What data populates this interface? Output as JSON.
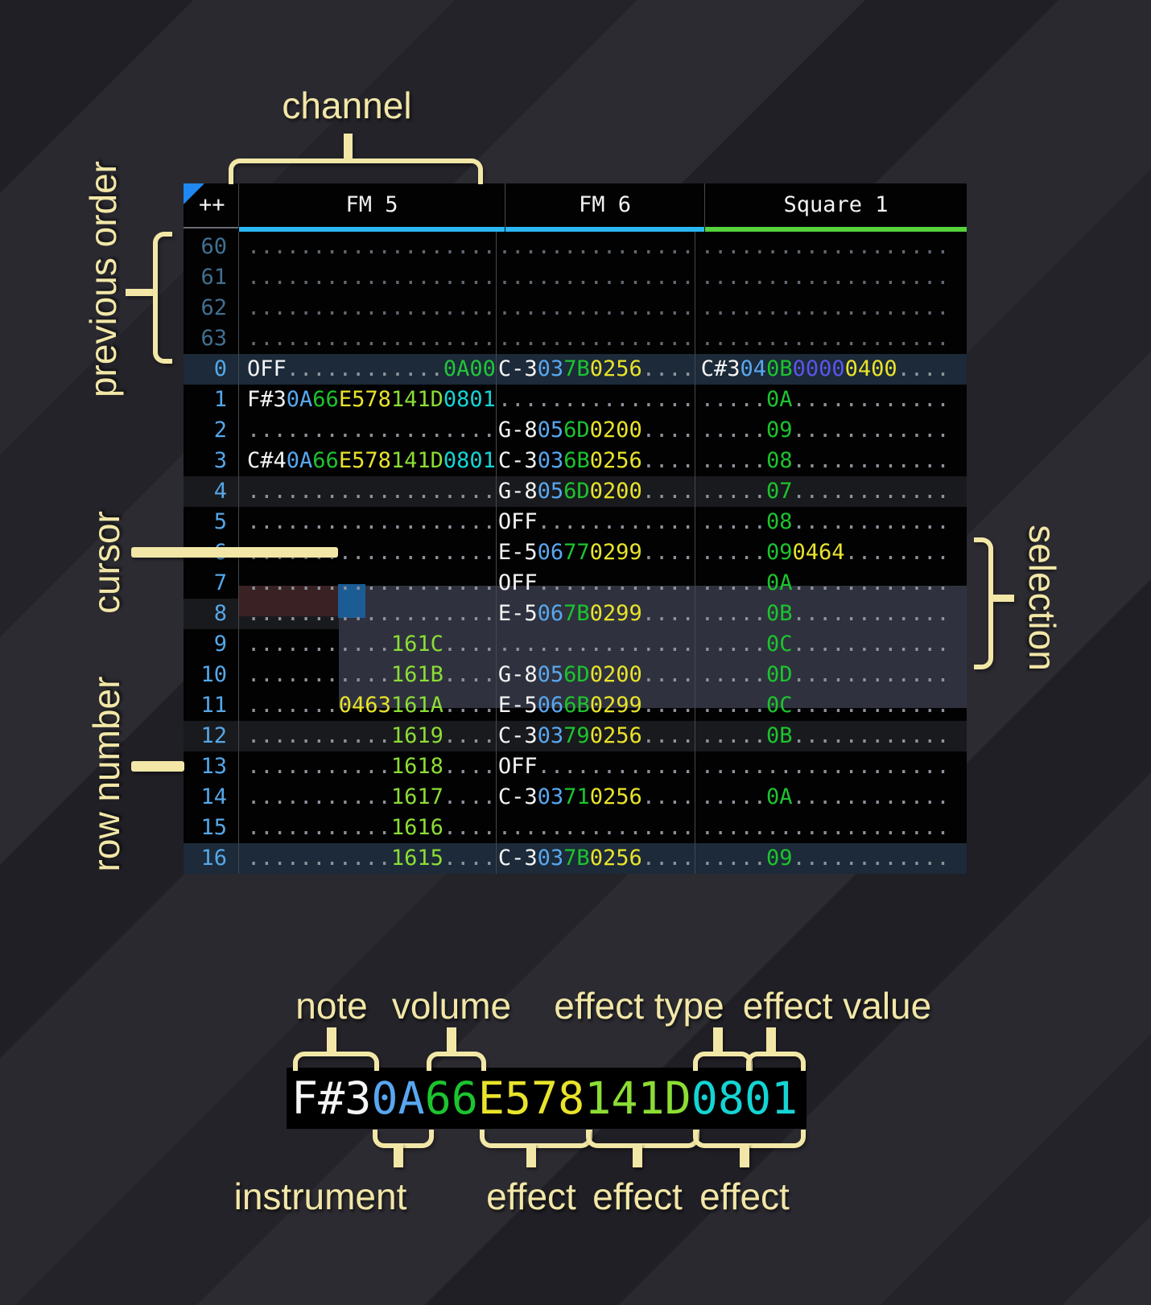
{
  "annotations": {
    "channel": "channel",
    "previous_order": "previous order",
    "cursor": "cursor",
    "row_number": "row number",
    "selection": "selection",
    "note": "note",
    "volume": "volume",
    "effect_type": "effect type",
    "effect_value": "effect value",
    "instrument": "instrument",
    "effect": "effect"
  },
  "tracker": {
    "corner_label": "++",
    "channels": [
      {
        "name": "FM 5",
        "underline": "fm"
      },
      {
        "name": "FM 6",
        "underline": "fm"
      },
      {
        "name": "Square 1",
        "underline": "sq"
      }
    ],
    "rows": [
      {
        "num": "60",
        "cls": "dim",
        "fm5": [
          "d:..................."
        ],
        "fm6": [
          "d:..............."
        ],
        "sq": [
          "d:..................."
        ]
      },
      {
        "num": "61",
        "cls": "dim",
        "fm5": [
          "d:..................."
        ],
        "fm6": [
          "d:..............."
        ],
        "sq": [
          "d:..................."
        ]
      },
      {
        "num": "62",
        "cls": "dim",
        "fm5": [
          "d:..................."
        ],
        "fm6": [
          "d:..............."
        ],
        "sq": [
          "d:..................."
        ]
      },
      {
        "num": "63",
        "cls": "dim",
        "fm5": [
          "d:..................."
        ],
        "fm6": [
          "d:..............."
        ],
        "sq": [
          "d:..................."
        ]
      },
      {
        "num": "0",
        "cls": "hl16",
        "fm5": [
          "W:OFF",
          "D:............",
          "G:0A00"
        ],
        "fm6": [
          "W:C-3",
          "I:03",
          "V:7B",
          "Y:0256",
          "D:...."
        ],
        "sq": [
          "W:C#3",
          "I:04",
          "V:0B",
          "P:0000",
          "Y:0400",
          "D:...."
        ]
      },
      {
        "num": "1",
        "cls": "",
        "fm5": [
          "W:F#3",
          "I:0A",
          "V:66",
          "Y:E578",
          "L:141D",
          "C:0801"
        ],
        "fm6": [
          "D:..............."
        ],
        "sq": [
          "D:.....",
          "V:0A",
          "D:............"
        ]
      },
      {
        "num": "2",
        "cls": "",
        "fm5": [
          "D:..................."
        ],
        "fm6": [
          "W:G-8",
          "I:05",
          "V:6D",
          "Y:0200",
          "D:...."
        ],
        "sq": [
          "D:.....",
          "V:09",
          "D:............"
        ]
      },
      {
        "num": "3",
        "cls": "",
        "fm5": [
          "W:C#4",
          "I:0A",
          "V:66",
          "Y:E578",
          "L:141D",
          "C:0801"
        ],
        "fm6": [
          "W:C-3",
          "I:03",
          "V:6B",
          "Y:0256",
          "D:...."
        ],
        "sq": [
          "D:.....",
          "V:08",
          "D:............"
        ]
      },
      {
        "num": "4",
        "cls": "hl4",
        "fm5": [
          "D:..................."
        ],
        "fm6": [
          "W:G-8",
          "I:05",
          "V:6D",
          "Y:0200",
          "D:...."
        ],
        "sq": [
          "D:.....",
          "V:07",
          "D:............"
        ]
      },
      {
        "num": "5",
        "cls": "",
        "fm5": [
          "D:..................."
        ],
        "fm6": [
          "W:OFF",
          "D:............"
        ],
        "sq": [
          "D:.....",
          "V:08",
          "D:............"
        ]
      },
      {
        "num": "6",
        "cls": "",
        "fm5": [
          "D:..................."
        ],
        "fm6": [
          "W:E-5",
          "I:06",
          "V:77",
          "Y:0299",
          "D:...."
        ],
        "sq": [
          "D:.....",
          "V:09",
          "Y:0464",
          "D:........"
        ]
      },
      {
        "num": "7",
        "cls": "",
        "fm5": [
          "D:..................."
        ],
        "fm6": [
          "W:OFF",
          "D:............"
        ],
        "sq": [
          "D:.....",
          "V:0A",
          "D:............"
        ]
      },
      {
        "num": "8",
        "cls": "hl4",
        "fm5": [
          "D:..................."
        ],
        "fm6": [
          "W:E-5",
          "I:06",
          "V:7B",
          "Y:0299",
          "D:...."
        ],
        "sq": [
          "D:.....",
          "V:0B",
          "D:............"
        ]
      },
      {
        "num": "9",
        "cls": "",
        "fm5": [
          "D:...........",
          "L:161C",
          "D:...."
        ],
        "fm6": [
          "D:..............."
        ],
        "sq": [
          "D:.....",
          "V:0C",
          "D:............"
        ]
      },
      {
        "num": "10",
        "cls": "",
        "fm5": [
          "D:...........",
          "L:161B",
          "D:...."
        ],
        "fm6": [
          "W:G-8",
          "I:05",
          "V:6D",
          "Y:0200",
          "D:...."
        ],
        "sq": [
          "D:.....",
          "V:0D",
          "D:............"
        ]
      },
      {
        "num": "11",
        "cls": "",
        "fm5": [
          "D:.......",
          "Y:0463",
          "L:161A",
          "D:...."
        ],
        "fm6": [
          "W:E-5",
          "I:06",
          "V:6B",
          "Y:0299",
          "D:...."
        ],
        "sq": [
          "D:.....",
          "V:0C",
          "D:............"
        ]
      },
      {
        "num": "12",
        "cls": "hl4",
        "fm5": [
          "D:...........",
          "L:1619",
          "D:...."
        ],
        "fm6": [
          "W:C-3",
          "I:03",
          "V:79",
          "Y:0256",
          "D:...."
        ],
        "sq": [
          "D:.....",
          "V:0B",
          "D:............"
        ]
      },
      {
        "num": "13",
        "cls": "",
        "fm5": [
          "D:...........",
          "L:1618",
          "D:...."
        ],
        "fm6": [
          "W:OFF",
          "D:............"
        ],
        "sq": [
          "D:..................."
        ]
      },
      {
        "num": "14",
        "cls": "",
        "fm5": [
          "D:...........",
          "L:1617",
          "D:...."
        ],
        "fm6": [
          "W:C-3",
          "I:03",
          "V:71",
          "Y:0256",
          "D:...."
        ],
        "sq": [
          "D:.....",
          "V:0A",
          "D:............"
        ]
      },
      {
        "num": "15",
        "cls": "",
        "fm5": [
          "D:...........",
          "L:1616",
          "D:...."
        ],
        "fm6": [
          "D:..............."
        ],
        "sq": [
          "D:..................."
        ]
      },
      {
        "num": "16",
        "cls": "hl16",
        "fm5": [
          "D:...........",
          "L:1615",
          "D:...."
        ],
        "fm6": [
          "W:C-3",
          "I:03",
          "V:7B",
          "Y:0256",
          "D:...."
        ],
        "sq": [
          "D:.....",
          "V:09",
          "D:............"
        ]
      }
    ]
  },
  "breakdown": {
    "segments": [
      "W:F#3",
      "I:0A",
      "V:66",
      "Y:E578",
      "L:141D",
      "C:0801"
    ]
  },
  "colors": {
    "text": {
      "W": "#f5f5f5",
      "I": "#58a7f0",
      "V": "#1cc42e",
      "Y": "#e9e32b",
      "L": "#8cdd35",
      "C": "#15d4d4",
      "P": "#5b55e9",
      "G": "#22c53a",
      "D": "#8e939b",
      "d": "#636971"
    },
    "ui": {
      "annotation": "#f2e7a7",
      "row_number": "#55a7e8",
      "row_number_dim": "#41708f",
      "header_text": "#f2f2f2",
      "underline_fm": "#2bb7f4",
      "underline_square": "#55d23c",
      "highlight_row_major": "#1c2a39",
      "highlight_row_minor": "#191a1d",
      "selection_bg": "#2f323e",
      "cursor_row_bg": "#3a2123",
      "cursor_bg": "#1c5c95",
      "corner_triangle": "#1f88f2"
    }
  }
}
